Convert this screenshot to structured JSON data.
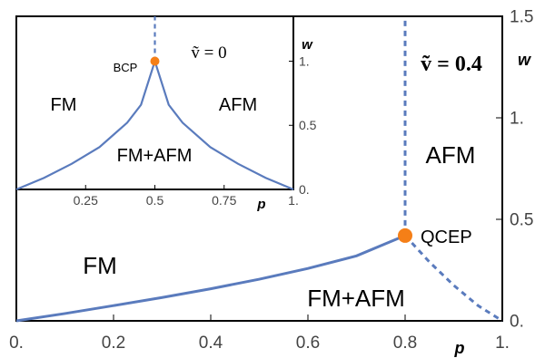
{
  "chart_data": [
    {
      "type": "line",
      "title": "",
      "annotation": "ṽ = 0.4",
      "xlabel": "p",
      "ylabel": "w",
      "xlim": [
        0,
        1
      ],
      "ylim": [
        0,
        1.5
      ],
      "xticks": [
        "0.",
        "0.2",
        "0.4",
        "0.6",
        "0.8",
        "1."
      ],
      "yticks": [
        "0.",
        "0.5",
        "1.",
        "1.5"
      ],
      "region_labels": [
        "FM",
        "AFM",
        "FM+AFM"
      ],
      "point_label": "QCEP",
      "point": {
        "x": 0.8,
        "y": 0.42
      },
      "color": "#5a7bbd",
      "point_color": "#f57f17",
      "series": [
        {
          "style": "solid",
          "points": [
            [
              0,
              0
            ],
            [
              0.1,
              0.036
            ],
            [
              0.2,
              0.075
            ],
            [
              0.3,
              0.115
            ],
            [
              0.4,
              0.158
            ],
            [
              0.5,
              0.205
            ],
            [
              0.6,
              0.258
            ],
            [
              0.7,
              0.32
            ],
            [
              0.8,
              0.42
            ]
          ]
        },
        {
          "style": "dashed",
          "points": [
            [
              0.8,
              0.42
            ],
            [
              0.85,
              0.29
            ],
            [
              0.9,
              0.175
            ],
            [
              0.95,
              0.075
            ],
            [
              1.0,
              0.0
            ]
          ]
        },
        {
          "style": "dashed",
          "points": [
            [
              0.8,
              0.42
            ],
            [
              0.8,
              1.5
            ]
          ]
        }
      ]
    },
    {
      "type": "line",
      "title": "",
      "annotation": "ṽ = 0",
      "xlabel": "p",
      "ylabel": "w",
      "xlim": [
        0,
        1
      ],
      "ylim": [
        0,
        1.35
      ],
      "xticks": [
        "0.25",
        "0.5",
        "0.75",
        "1."
      ],
      "yticks": [
        "0.",
        "0.5",
        "1."
      ],
      "region_labels": [
        "FM",
        "AFM",
        "FM+AFM"
      ],
      "point_label": "BCP",
      "point": {
        "x": 0.5,
        "y": 1.0
      },
      "color": "#5a7bbd",
      "point_color": "#f57f17",
      "series": [
        {
          "style": "solid",
          "points": [
            [
              0,
              0
            ],
            [
              0.1,
              0.09
            ],
            [
              0.2,
              0.2
            ],
            [
              0.3,
              0.33
            ],
            [
              0.4,
              0.52
            ],
            [
              0.45,
              0.66
            ],
            [
              0.5,
              1.0
            ]
          ]
        },
        {
          "style": "solid",
          "points": [
            [
              0.5,
              1.0
            ],
            [
              0.55,
              0.66
            ],
            [
              0.6,
              0.52
            ],
            [
              0.7,
              0.33
            ],
            [
              0.8,
              0.2
            ],
            [
              0.9,
              0.09
            ],
            [
              1.0,
              0
            ]
          ]
        },
        {
          "style": "dashed",
          "points": [
            [
              0.5,
              1.0
            ],
            [
              0.5,
              1.35
            ]
          ]
        }
      ]
    }
  ]
}
